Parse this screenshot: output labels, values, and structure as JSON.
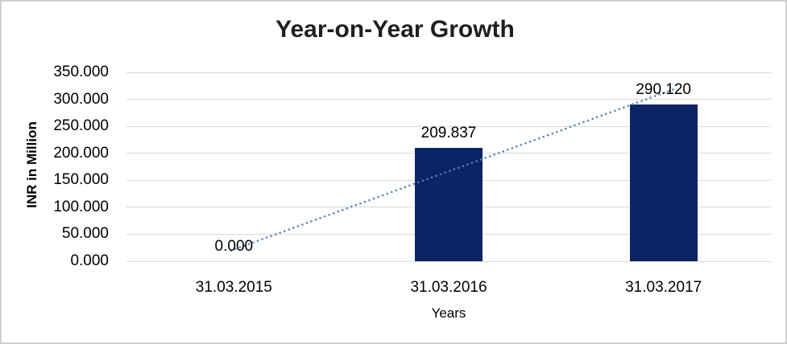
{
  "chart_data": {
    "type": "bar",
    "title": "Year-on-Year Growth",
    "xlabel": "Years",
    "ylabel": "INR in Million",
    "categories": [
      "31.03.2015",
      "31.03.2016",
      "31.03.2017"
    ],
    "values": [
      0,
      209.837,
      290.12
    ],
    "value_labels": [
      "0.000",
      "209.837",
      "290.120"
    ],
    "ylim": [
      0,
      350
    ],
    "ytick_step": 50,
    "ytick_labels": [
      "0.000",
      "50.000",
      "100.000",
      "150.000",
      "200.000",
      "250.000",
      "300.000",
      "350.000"
    ],
    "grid": true,
    "legend": "none",
    "trendline": {
      "type": "linear",
      "style": "dotted",
      "start_value": 21.6,
      "end_value": 311.7
    }
  },
  "colors": {
    "bar": "#0b2465",
    "trendline": "#4f81bd",
    "gridline": "#d9d9d9",
    "border": "#cfcfcf",
    "text": "#000000",
    "title_text": "#1f1f1f"
  }
}
